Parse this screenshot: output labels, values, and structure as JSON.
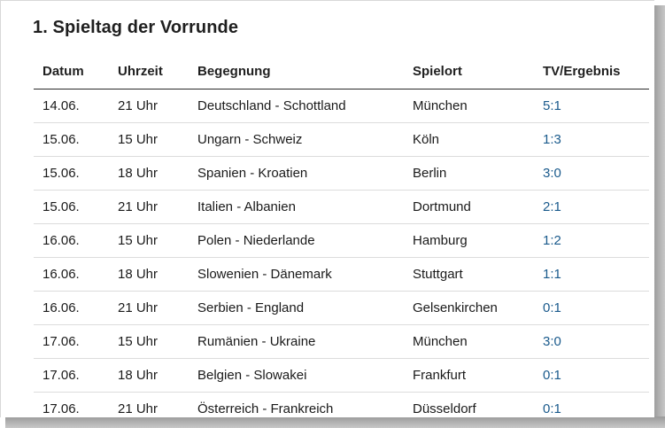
{
  "title": "1. Spieltag der Vorrunde",
  "table": {
    "headers": [
      "Datum",
      "Uhrzeit",
      "Begegnung",
      "Spielort",
      "TV/Ergebnis"
    ],
    "rows": [
      [
        "14.06.",
        "21 Uhr",
        "Deutschland - Schottland",
        "München",
        "5:1"
      ],
      [
        "15.06.",
        "15 Uhr",
        "Ungarn - Schweiz",
        "Köln",
        "1:3"
      ],
      [
        "15.06.",
        "18 Uhr",
        "Spanien - Kroatien",
        "Berlin",
        "3:0"
      ],
      [
        "15.06.",
        "21 Uhr",
        "Italien - Albanien",
        "Dortmund",
        "2:1"
      ],
      [
        "16.06.",
        "15 Uhr",
        "Polen - Niederlande",
        "Hamburg",
        "1:2"
      ],
      [
        "16.06.",
        "18 Uhr",
        "Slowenien - Dänemark",
        "Stuttgart",
        "1:1"
      ],
      [
        "16.06.",
        "21 Uhr",
        "Serbien - England",
        "Gelsenkirchen",
        "0:1"
      ],
      [
        "17.06.",
        "15 Uhr",
        "Rumänien - Ukraine",
        "München",
        "3:0"
      ],
      [
        "17.06.",
        "18 Uhr",
        "Belgien - Slowakei",
        "Frankfurt",
        "0:1"
      ],
      [
        "17.06.",
        "21 Uhr",
        "Österreich - Frankreich",
        "Düsseldorf",
        "0:1"
      ]
    ]
  },
  "colors": {
    "result_link": "#1a5a8c",
    "text": "#1a1a1a",
    "row_border": "#dcdcdc"
  }
}
